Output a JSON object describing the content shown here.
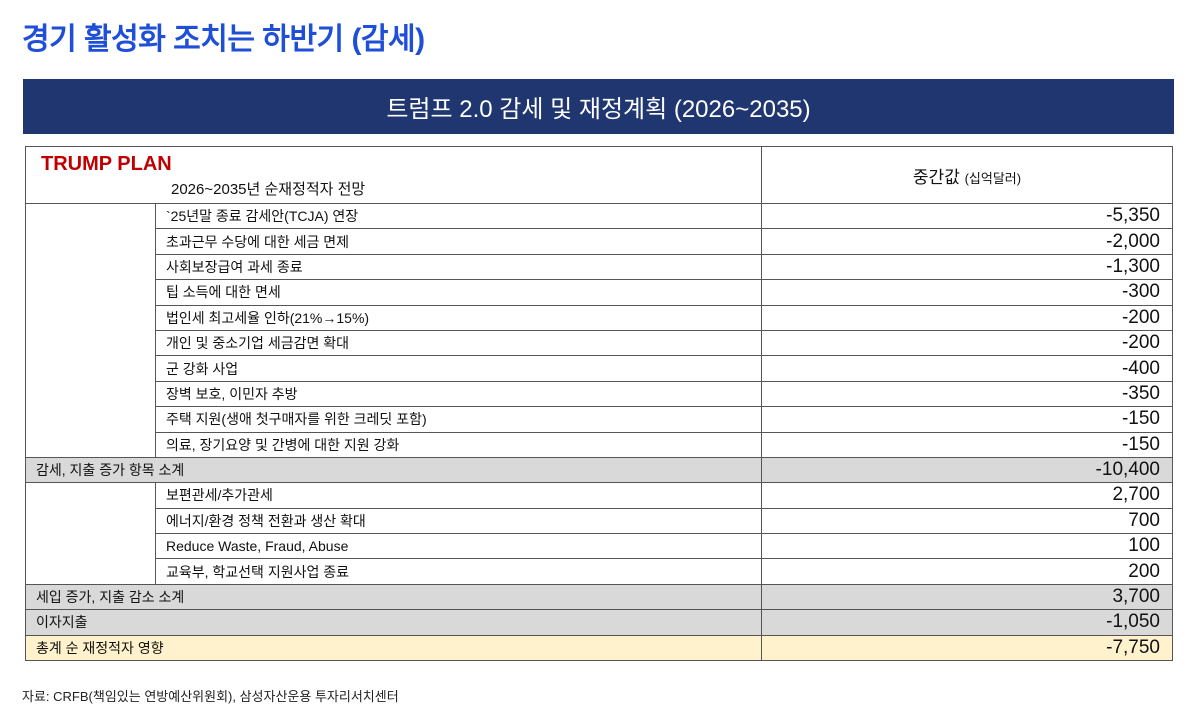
{
  "title": "경기 활성화 조치는 하반기 (감세)",
  "banner": "트럼프 2.0 감세 및 재정계획 (2026~2035)",
  "header": {
    "plan": "TRUMP PLAN",
    "subtitle": "2026~2035년 순재정적자 전망",
    "value_col": "중간값",
    "value_unit": "(십억달러)"
  },
  "group1": [
    {
      "label": "`25년말 종료 감세안(TCJA) 연장",
      "value": "-5,350"
    },
    {
      "label": "초과근무 수당에 대한 세금 면제",
      "value": "-2,000"
    },
    {
      "label": "사회보장급여 과세 종료",
      "value": "-1,300"
    },
    {
      "label": "팁 소득에 대한 면세",
      "value": "-300"
    },
    {
      "label": "법인세 최고세율 인하(21%→15%)",
      "value": "-200"
    },
    {
      "label": "개인 및 중소기업 세금감면 확대",
      "value": "-200"
    },
    {
      "label": "군 강화 사업",
      "value": "-400"
    },
    {
      "label": "장벽 보호, 이민자 추방",
      "value": "-350"
    },
    {
      "label": "주택 지원(생애 첫구매자를 위한 크레딧 포함)",
      "value": "-150"
    },
    {
      "label": "의료, 장기요양 및 간병에 대한 지원 강화",
      "value": "-150"
    }
  ],
  "subtotal1": {
    "label": "감세, 지출 증가 항목 소계",
    "value": "-10,400"
  },
  "group2": [
    {
      "label": "보편관세/추가관세",
      "value": "2,700"
    },
    {
      "label": "에너지/환경 정책 전환과 생산 확대",
      "value": "700"
    },
    {
      "label": "Reduce Waste, Fraud, Abuse",
      "value": "100"
    },
    {
      "label": "교육부, 학교선택 지원사업 종료",
      "value": "200"
    }
  ],
  "subtotal2": {
    "label": "세입 증가, 지출 감소 소계",
    "value": "3,700"
  },
  "interest": {
    "label": "이자지출",
    "value": "-1,050"
  },
  "total": {
    "label": "총계 순 재정적자 영향",
    "value": "-7,750"
  },
  "source": "자료: CRFB(책임있는 연방예산위원회), 삼성자산운용 투자리서치센터",
  "colors": {
    "title": "#1f4fd6",
    "banner": "#1f3670",
    "plan": "#c00000",
    "subtotal_bg": "#d9d9d9",
    "total_bg": "#fff2cc"
  }
}
